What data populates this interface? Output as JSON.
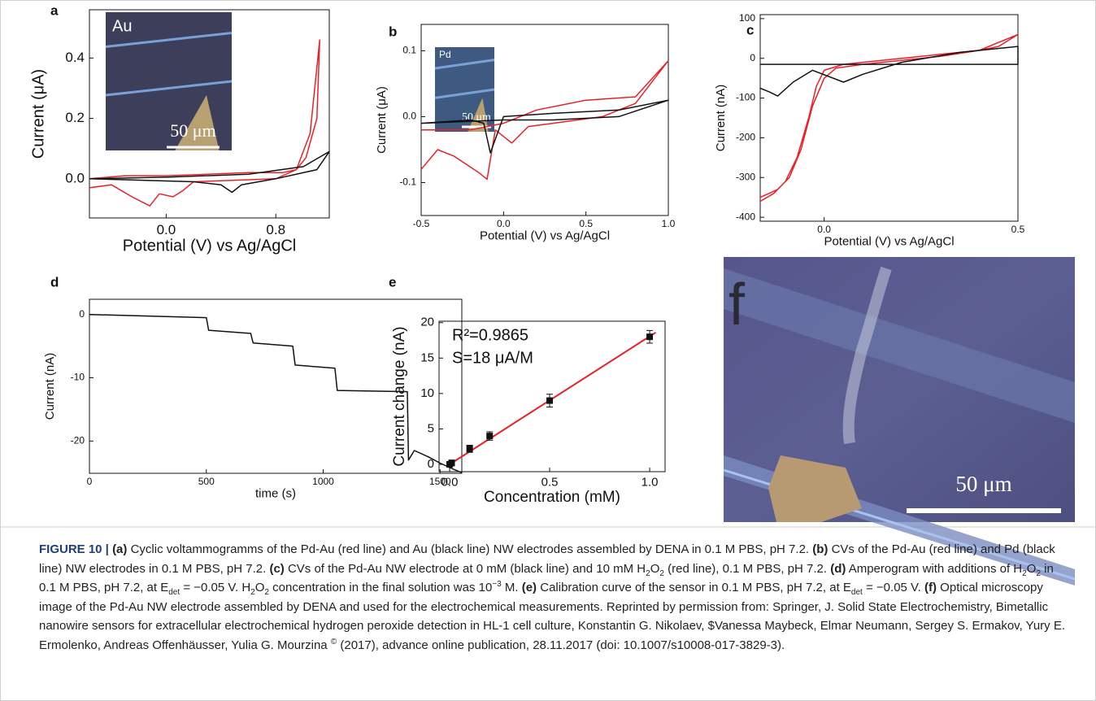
{
  "chart_data": [
    {
      "type": "line",
      "panel_label": "a",
      "xlabel": "Potential (V) vs Ag/AgCl",
      "ylabel": "Current (μA)",
      "xlim": [
        -0.56,
        1.19
      ],
      "ylim": [
        -0.13,
        0.56
      ],
      "xticks": [
        {
          "value": 0,
          "label": "0.0"
        },
        0.8
      ],
      "yticks": [
        {
          "value": 0,
          "label": "0.0"
        },
        0.2,
        0.4
      ],
      "inset": {
        "label": "Au",
        "scale_label": "50 μm"
      },
      "series": [
        {
          "color": "#e8202a",
          "x": [
            -0.56,
            -0.4,
            -0.25,
            -0.12,
            -0.05,
            0.05,
            0.12,
            0.2,
            0.5,
            0.8,
            0.95,
            1.05,
            1.12,
            1.1,
            1.02,
            0.95,
            0.85,
            0.6,
            0.3,
            0,
            -0.3,
            -0.56
          ],
          "values": [
            -0.03,
            -0.02,
            -0.06,
            -0.09,
            -0.05,
            -0.06,
            -0.04,
            -0.01,
            -0.005,
            0.0,
            0.03,
            0.15,
            0.46,
            0.2,
            0.07,
            0.03,
            0.02,
            0.02,
            0.015,
            0.01,
            0.01,
            0.0
          ]
        },
        {
          "color": "#111111",
          "x": [
            -0.56,
            0.2,
            0.4,
            0.48,
            0.55,
            0.8,
            1.1,
            1.19,
            1.0,
            0.6,
            0.0,
            -0.56
          ],
          "values": [
            0.0,
            -0.01,
            -0.02,
            -0.045,
            -0.02,
            0.0,
            0.03,
            0.09,
            0.04,
            0.015,
            0.005,
            0.0
          ]
        }
      ]
    },
    {
      "type": "line",
      "panel_label": "b",
      "xlabel": "Potential (V) vs Ag/AgCl",
      "ylabel": "Current (μA)",
      "xlim": [
        -0.5,
        1.0
      ],
      "ylim": [
        -0.15,
        0.14
      ],
      "xticks": [
        -0.5,
        {
          "value": 0,
          "label": "0.0"
        },
        0.5,
        {
          "value": 1,
          "label": "1.0"
        }
      ],
      "yticks": [
        -0.1,
        {
          "value": 0,
          "label": "0.0"
        },
        0.1
      ],
      "inset": {
        "label": "Pd",
        "scale_label": "50 μm"
      },
      "series": [
        {
          "color": "#e8202a",
          "x": [
            -0.5,
            -0.4,
            -0.3,
            -0.15,
            -0.1,
            -0.05,
            0.05,
            0.15,
            0.3,
            0.6,
            0.8,
            1.0,
            0.8,
            0.5,
            0.2,
            0,
            -0.2,
            -0.5
          ],
          "values": [
            -0.08,
            -0.05,
            -0.06,
            -0.085,
            -0.095,
            -0.02,
            -0.04,
            -0.015,
            -0.01,
            0.0,
            0.02,
            0.085,
            0.03,
            0.025,
            0.01,
            -0.01,
            -0.02,
            -0.02
          ]
        },
        {
          "color": "#111111",
          "x": [
            -0.5,
            -0.2,
            -0.12,
            -0.08,
            0,
            0.3,
            0.7,
            1.0,
            0.7,
            0.3,
            0,
            -0.5
          ],
          "values": [
            -0.01,
            -0.005,
            -0.01,
            -0.055,
            0.0,
            0.005,
            0.01,
            0.025,
            0.0,
            -0.005,
            -0.005,
            -0.01
          ]
        }
      ]
    },
    {
      "type": "line",
      "panel_label": "c",
      "xlabel": "Potential (V) vs Ag/AgCl",
      "ylabel": "Current (nA)",
      "xlim": [
        -0.165,
        0.5
      ],
      "ylim": [
        -410,
        110
      ],
      "xticks": [
        {
          "value": 0,
          "label": "0.0"
        },
        0.5
      ],
      "yticks": [
        -400,
        -300,
        -200,
        -100,
        0,
        100
      ],
      "series": [
        {
          "color": "#e8202a",
          "x": [
            -0.165,
            -0.13,
            -0.1,
            -0.07,
            -0.04,
            -0.02,
            0,
            0.05,
            0.1,
            0.2,
            0.3,
            0.4,
            0.45,
            0.5,
            0.4,
            0.3,
            0.2,
            0.1,
            0.03,
            0,
            -0.03,
            -0.06,
            -0.09,
            -0.12,
            -0.165
          ],
          "values": [
            -360,
            -340,
            -310,
            -250,
            -150,
            -70,
            -30,
            -15,
            -10,
            0,
            10,
            20,
            30,
            60,
            20,
            5,
            -5,
            -15,
            -25,
            -50,
            -120,
            -230,
            -300,
            -330,
            -350
          ]
        },
        {
          "color": "#111111",
          "x": [
            -0.165,
            -0.14,
            -0.12,
            -0.08,
            -0.03,
            0.05,
            0.1,
            0.2,
            0.35,
            0.5,
            0.5,
            0.3,
            0,
            -0.165
          ],
          "values": [
            -75,
            -85,
            -95,
            -60,
            -30,
            -60,
            -40,
            -10,
            15,
            30,
            -15,
            -15,
            -15,
            -15
          ]
        }
      ]
    },
    {
      "type": "line",
      "panel_label": "d",
      "xlabel": "time (s)",
      "ylabel": "Current (nA)",
      "xlim": [
        0,
        1593
      ],
      "ylim": [
        -25.1,
        2.4
      ],
      "xticks": [
        0,
        500,
        1000,
        1500
      ],
      "yticks": [
        -20,
        -10,
        0
      ],
      "series": [
        {
          "color": "#111111",
          "x": [
            0,
            500,
            510,
            690,
            700,
            870,
            880,
            1050,
            1060,
            1360,
            1365,
            1390,
            1450,
            1500,
            1560,
            1593
          ],
          "values": [
            0,
            -0.5,
            -2.5,
            -3,
            -4.5,
            -5,
            -8,
            -8.5,
            -12,
            -12.2,
            -23,
            -21.5,
            -22.5,
            -23.5,
            -24.5,
            -25
          ]
        }
      ]
    },
    {
      "type": "scatter",
      "panel_label": "e",
      "xlabel": "Concentration (mM)",
      "ylabel": "Current change (nA)",
      "xlim": [
        -0.053,
        1.077
      ],
      "ylim": [
        -1.03,
        20.2
      ],
      "xticks": [
        {
          "value": 0,
          "label": "0.0"
        },
        0.5,
        {
          "value": 1,
          "label": "1.0"
        }
      ],
      "yticks": [
        0,
        5,
        10,
        15,
        20
      ],
      "annotations": [
        "R²=0.9865",
        "S=18 μA/M"
      ],
      "fit_line": {
        "color": "#e8202a",
        "x": [
          0,
          1.03
        ],
        "values": [
          0,
          18.6
        ]
      },
      "series": [
        {
          "color": "#111111",
          "x": [
            0,
            0.01,
            0.1,
            0.2,
            0.5,
            1.0
          ],
          "values": [
            0,
            0.2,
            2.2,
            4,
            9,
            18
          ],
          "errors": [
            0.4,
            0.4,
            0.5,
            0.6,
            0.9,
            0.9
          ]
        }
      ]
    }
  ],
  "panel_f": {
    "label": "f",
    "scale_label": "50 μm"
  },
  "caption": {
    "runs": [
      {
        "text": "FIGURE 10 | ",
        "style": "label"
      },
      {
        "text": "(a)",
        "style": "bold"
      },
      {
        "text": " Cyclic voltammogramms of the Pd-Au (red line) and Au (black line) NW electrodes assembled by DENA in 0.1 M PBS, pH 7.2. "
      },
      {
        "text": "(b)",
        "style": "bold"
      },
      {
        "text": " CVs of the Pd-Au (red line) and Pd (black line) NW electrodes in 0.1 M PBS, pH 7.2. "
      },
      {
        "text": "(c)",
        "style": "bold"
      },
      {
        "text": " CVs of the Pd-Au NW electrode at 0 mM (black line) and 10 mM H"
      },
      {
        "text": "2",
        "style": "sub"
      },
      {
        "text": "O"
      },
      {
        "text": "2",
        "style": "sub"
      },
      {
        "text": " (red line), 0.1 M PBS, pH 7.2. "
      },
      {
        "text": "(d)",
        "style": "bold"
      },
      {
        "text": " Amperogram with additions of H"
      },
      {
        "text": "2",
        "style": "sub"
      },
      {
        "text": "O"
      },
      {
        "text": "2",
        "style": "sub"
      },
      {
        "text": " in 0.1 M PBS, pH 7.2, at E"
      },
      {
        "text": "det",
        "style": "sub"
      },
      {
        "text": " = −0.05 V. H"
      },
      {
        "text": "2",
        "style": "sub"
      },
      {
        "text": "O"
      },
      {
        "text": "2",
        "style": "sub"
      },
      {
        "text": " concentration in the final solution was 10"
      },
      {
        "text": "−3",
        "style": "sup"
      },
      {
        "text": " M. "
      },
      {
        "text": "(e)",
        "style": "bold"
      },
      {
        "text": " Calibration curve of the sensor in 0.1 M PBS, pH 7.2, at E"
      },
      {
        "text": "det",
        "style": "sub"
      },
      {
        "text": " = −0.05 V. "
      },
      {
        "text": "(f)",
        "style": "bold"
      },
      {
        "text": " Optical microscopy image of the Pd-Au NW electrode assembled by DENA and used for the electrochemical measurements. Reprinted by permission from: Springer, J. Solid State Electrochemistry, Bimetallic nanowire sensors for extracellular electrochemical hydrogen peroxide detection in HL-1 cell culture, Konstantin G. Nikolaev, $Vanessa Maybeck, Elmar Neumann, Sergey S. Ermakov, Yury E. Ermolenko, Andreas Offenhäusser, Yulia G. Mourzina "
      },
      {
        "text": "©",
        "style": "sup"
      },
      {
        "text": " (2017), advance online publication, 28.11.2017 (doi: 10.1007/s10008-017-3829-3)."
      }
    ]
  }
}
